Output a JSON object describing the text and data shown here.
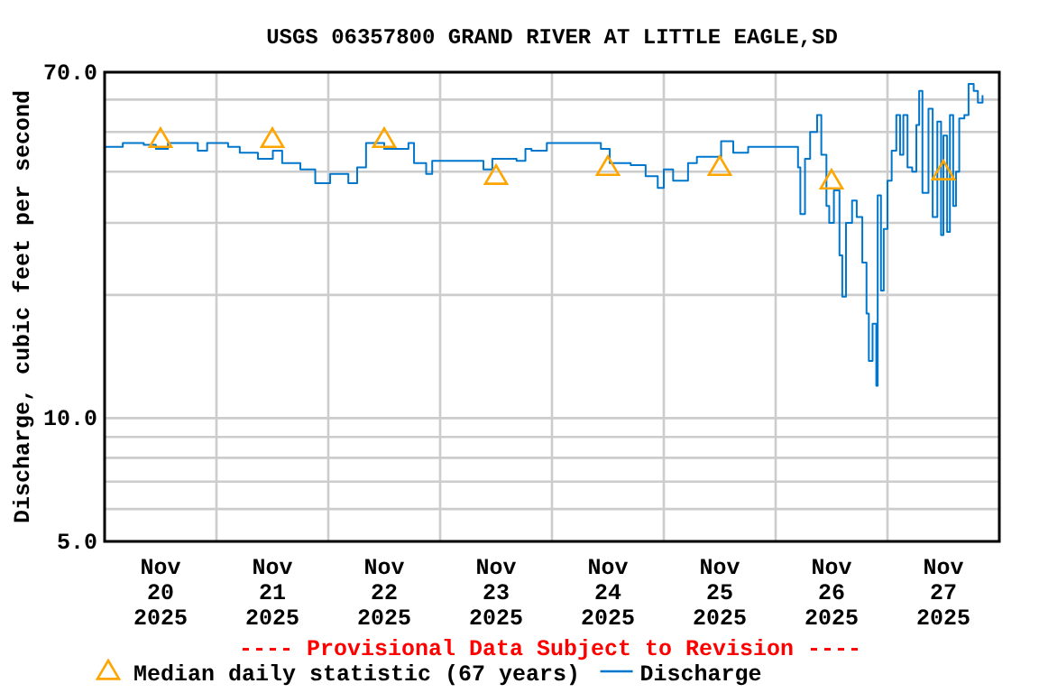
{
  "chart_data": {
    "type": "step",
    "title": "USGS 06357800 GRAND RIVER AT LITTLE EAGLE,SD",
    "ylabel": "Discharge, cubic feet per second",
    "log": true,
    "grid": true,
    "legend": "bottom",
    "annotations": [
      "---- Provisional Data Subject to Revision ----"
    ],
    "xlim": [
      "2025-11-20T00:00",
      "2025-11-28T00:00"
    ],
    "xticks": [
      {
        "value": "2025-11-20T12:00",
        "label": "Nov\n20\n2025"
      },
      {
        "value": "2025-11-21T12:00",
        "label": "Nov\n21\n2025"
      },
      {
        "value": "2025-11-22T12:00",
        "label": "Nov\n22\n2025"
      },
      {
        "value": "2025-11-23T12:00",
        "label": "Nov\n23\n2025"
      },
      {
        "value": "2025-11-24T12:00",
        "label": "Nov\n24\n2025"
      },
      {
        "value": "2025-11-25T12:00",
        "label": "Nov\n25\n2025"
      },
      {
        "value": "2025-11-26T12:00",
        "label": "Nov\n26\n2025"
      },
      {
        "value": "2025-11-27T12:00",
        "label": "Nov\n27\n2025"
      },
      {
        "value": "2025-11-21T00:00",
        "label": null
      },
      {
        "value": "2025-11-22T00:00",
        "label": null
      },
      {
        "value": "2025-11-23T00:00",
        "label": null
      },
      {
        "value": "2025-11-24T00:00",
        "label": null
      },
      {
        "value": "2025-11-25T00:00",
        "label": null
      },
      {
        "value": "2025-11-26T00:00",
        "label": null
      },
      {
        "value": "2025-11-27T00:00",
        "label": null
      }
    ],
    "ylim": [
      5,
      70
    ],
    "yticks": [
      {
        "value": 5,
        "label": "5.0"
      },
      {
        "value": 6,
        "label": null
      },
      {
        "value": 7,
        "label": null
      },
      {
        "value": 8,
        "label": null
      },
      {
        "value": 9,
        "label": null
      },
      {
        "value": 10,
        "label": "10.0"
      },
      {
        "value": 20,
        "label": null
      },
      {
        "value": 30,
        "label": null
      },
      {
        "value": 40,
        "label": null
      },
      {
        "value": 50,
        "label": null
      },
      {
        "value": 60,
        "label": null
      },
      {
        "value": 70,
        "label": "70.0"
      }
    ],
    "series": [
      {
        "name": "Median daily statistic (67 years)",
        "type": "scatter",
        "marker": "triangle",
        "color": "#ffa500",
        "x": [
          "2025-11-20T12:00",
          "2025-11-21T12:00",
          "2025-11-22T12:00",
          "2025-11-23T12:00",
          "2025-11-24T12:00",
          "2025-11-25T12:00",
          "2025-11-26T12:00",
          "2025-11-27T12:00"
        ],
        "values": [
          48,
          48,
          48,
          39,
          41,
          41,
          38,
          40
        ]
      },
      {
        "name": "Discharge",
        "color": "#0077cc",
        "x": [
          "2025-11-20T00:00",
          "2025-11-20T03:54",
          "2025-11-20T08:24",
          "2025-11-20T11:00",
          "2025-11-20T13:36",
          "2025-11-20T20:00",
          "2025-11-20T22:00",
          "2025-11-21T02:30",
          "2025-11-21T05:00",
          "2025-11-21T08:54",
          "2025-11-21T12:06",
          "2025-11-21T14:06",
          "2025-11-21T18:00",
          "2025-11-21T21:12",
          "2025-11-22T00:24",
          "2025-11-22T04:18",
          "2025-11-22T06:12",
          "2025-11-22T08:06",
          "2025-11-22T12:00",
          "2025-11-22T17:12",
          "2025-11-22T18:24",
          "2025-11-22T21:00",
          "2025-11-22T22:18",
          "2025-11-23T06:00",
          "2025-11-23T09:18",
          "2025-11-23T11:12",
          "2025-11-23T16:24",
          "2025-11-23T18:18",
          "2025-11-23T19:36",
          "2025-11-23T22:54",
          "2025-11-24T09:12",
          "2025-11-24T10:30",
          "2025-11-24T12:24",
          "2025-11-24T16:54",
          "2025-11-24T20:06",
          "2025-11-24T22:42",
          "2025-11-25T00:00",
          "2025-11-25T02:00",
          "2025-11-25T05:12",
          "2025-11-25T07:06",
          "2025-11-25T12:18",
          "2025-11-25T14:54",
          "2025-11-25T18:06",
          "2025-11-26T03:48",
          "2025-11-26T04:48",
          "2025-11-26T05:18",
          "2025-11-26T06:18",
          "2025-11-26T07:24",
          "2025-11-26T08:54",
          "2025-11-26T09:48",
          "2025-11-26T10:54",
          "2025-11-26T11:30",
          "2025-11-26T12:30",
          "2025-11-26T13:42",
          "2025-11-26T14:18",
          "2025-11-26T15:06",
          "2025-11-26T16:24",
          "2025-11-26T17:24",
          "2025-11-26T18:36",
          "2025-11-26T19:30",
          "2025-11-26T20:00",
          "2025-11-26T20:48",
          "2025-11-26T21:36",
          "2025-11-26T21:54",
          "2025-11-26T22:36",
          "2025-11-26T23:12",
          "2025-11-27T00:00",
          "2025-11-27T00:54",
          "2025-11-27T01:54",
          "2025-11-27T02:42",
          "2025-11-27T03:24",
          "2025-11-27T04:18",
          "2025-11-27T05:18",
          "2025-11-27T06:12",
          "2025-11-27T06:48",
          "2025-11-27T07:30",
          "2025-11-27T08:48",
          "2025-11-27T09:42",
          "2025-11-27T10:42",
          "2025-11-27T11:30",
          "2025-11-27T12:00",
          "2025-11-27T12:48",
          "2025-11-27T13:24",
          "2025-11-27T14:06",
          "2025-11-27T14:42",
          "2025-11-27T15:24",
          "2025-11-27T16:30",
          "2025-11-27T17:24",
          "2025-11-27T18:30",
          "2025-11-27T19:24",
          "2025-11-27T20:24"
        ],
        "values": [
          46,
          47,
          46.5,
          45.5,
          47,
          45,
          47,
          46,
          44.5,
          43,
          45,
          42,
          40.5,
          37.5,
          39.5,
          37.5,
          41,
          47,
          45.5,
          47,
          42,
          39.5,
          42.5,
          42.5,
          40.5,
          43,
          42.5,
          45.5,
          45,
          47,
          47,
          45.5,
          42,
          41.5,
          39,
          36.5,
          40.5,
          38,
          42,
          43.5,
          47.5,
          44.5,
          46,
          46,
          41,
          31.5,
          43,
          50,
          55,
          44,
          33,
          30,
          36,
          25,
          19.8,
          30,
          34,
          31,
          24,
          18,
          13.8,
          17,
          12,
          35,
          20.5,
          29,
          38,
          45,
          55,
          44,
          55,
          41,
          40,
          52,
          63,
          35.5,
          57,
          31,
          53,
          28,
          49,
          28.5,
          55,
          33,
          40,
          54,
          55,
          65.5,
          63,
          59,
          61.5
        ]
      }
    ]
  }
}
